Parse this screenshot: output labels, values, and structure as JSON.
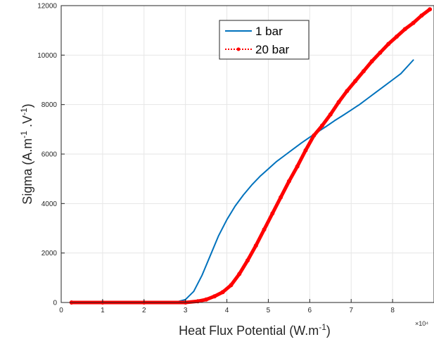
{
  "chart_data": {
    "type": "line",
    "xlabel_main": "Heat Flux Potential (W.m",
    "xlabel_sup": "-1",
    "xlabel_end": ")",
    "ylabel_main": "Sigma (A.m",
    "ylabel_sup1": "-1",
    "ylabel_mid": " .V",
    "ylabel_sup2": "-1",
    "ylabel_end": ")",
    "x_multiplier": "×10⁴",
    "xlim": [
      0,
      9
    ],
    "ylim": [
      0,
      12000
    ],
    "grid": true,
    "legend_position": "top-center",
    "x_ticks": [
      0,
      1,
      2,
      3,
      4,
      5,
      6,
      7,
      8
    ],
    "y_ticks": [
      0,
      2000,
      4000,
      6000,
      8000,
      10000,
      12000
    ],
    "series": [
      {
        "name": "1 bar",
        "color": "#0072bd",
        "style": "solid",
        "x": [
          0.25,
          1.0,
          2.0,
          2.8,
          3.0,
          3.2,
          3.4,
          3.6,
          3.8,
          4.0,
          4.2,
          4.4,
          4.6,
          4.8,
          5.0,
          5.2,
          5.4,
          5.6,
          5.8,
          6.0,
          6.2,
          6.4,
          6.6,
          6.8,
          7.0,
          7.2,
          7.4,
          7.6,
          7.8,
          8.0,
          8.2,
          8.5
        ],
        "values": [
          0,
          0,
          0,
          30,
          120,
          450,
          1100,
          1900,
          2700,
          3350,
          3900,
          4350,
          4750,
          5100,
          5400,
          5700,
          5950,
          6200,
          6450,
          6680,
          6900,
          7120,
          7350,
          7560,
          7780,
          8000,
          8250,
          8500,
          8750,
          9000,
          9250,
          9800
        ]
      },
      {
        "name": "20 bar",
        "color": "#ff0000",
        "style": "dotted-marker",
        "x": [
          0.25,
          1.0,
          2.0,
          3.0,
          3.3,
          3.5,
          3.7,
          3.9,
          4.1,
          4.3,
          4.5,
          4.7,
          4.9,
          5.1,
          5.3,
          5.5,
          5.7,
          5.9,
          6.1,
          6.3,
          6.5,
          6.7,
          6.9,
          7.1,
          7.3,
          7.5,
          7.7,
          7.9,
          8.1,
          8.3,
          8.5,
          8.7,
          8.9
        ],
        "values": [
          0,
          0,
          0,
          0,
          50,
          120,
          250,
          420,
          700,
          1150,
          1700,
          2300,
          2950,
          3600,
          4250,
          4900,
          5500,
          6150,
          6750,
          7150,
          7600,
          8100,
          8550,
          8950,
          9350,
          9750,
          10100,
          10450,
          10750,
          11050,
          11300,
          11600,
          11850
        ]
      }
    ]
  }
}
